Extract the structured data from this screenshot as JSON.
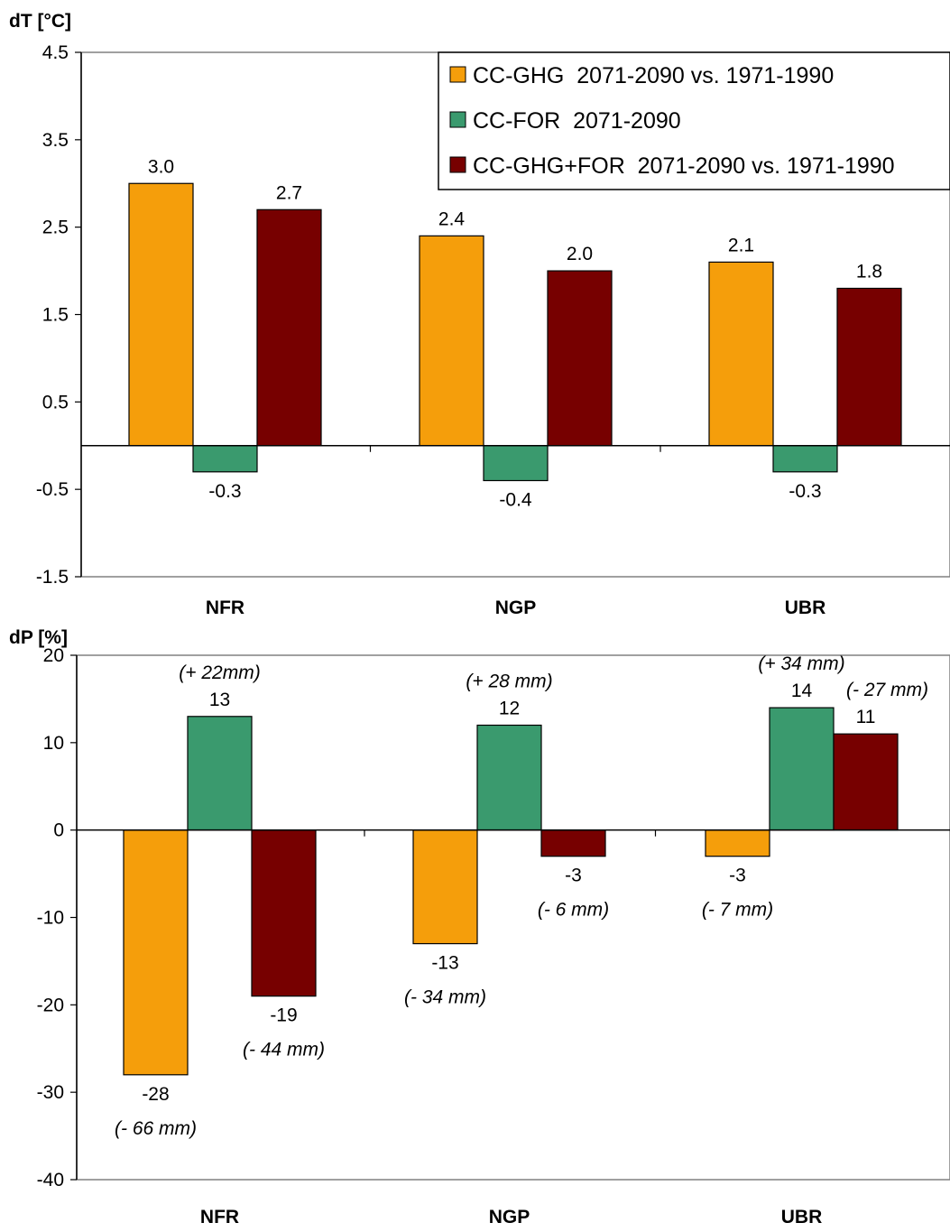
{
  "chart_data": [
    {
      "type": "bar",
      "ylabel": "dT [°C]",
      "categories": [
        "NFR",
        "NGP",
        "UBR"
      ],
      "ylim": [
        -1.5,
        4.5
      ],
      "yticks": [
        "4.5",
        "3.5",
        "2.5",
        "1.5",
        "0.5",
        "-0.5",
        "-1.5"
      ],
      "ytick_values": [
        4.5,
        3.5,
        2.5,
        1.5,
        0.5,
        -0.5,
        -1.5
      ],
      "series": [
        {
          "name": "CC-GHG  2071-2090 vs. 1971-1990",
          "color": "#f59e0b",
          "values": [
            3.0,
            2.4,
            2.1
          ],
          "labels": [
            "3.0",
            "2.4",
            "2.1"
          ]
        },
        {
          "name": "CC-FOR  2071-2090",
          "color": "#3a9a6e",
          "values": [
            -0.3,
            -0.4,
            -0.3
          ],
          "labels": [
            "-0.3",
            "-0.4",
            "-0.3"
          ]
        },
        {
          "name": "CC-GHG+FOR  2071-2090 vs. 1971-1990",
          "color": "#770000",
          "values": [
            2.7,
            2.0,
            1.8
          ],
          "labels": [
            "2.7",
            "2.0",
            "1.8"
          ]
        }
      ],
      "legend": {
        "position": "top-right"
      }
    },
    {
      "type": "bar",
      "ylabel": "dP [%]",
      "categories": [
        "NFR",
        "NGP",
        "UBR"
      ],
      "ylim": [
        -40,
        20
      ],
      "yticks": [
        "20",
        "10",
        "0",
        "-10",
        "-20",
        "-30",
        "-40"
      ],
      "ytick_values": [
        20,
        10,
        0,
        -10,
        -20,
        -30,
        -40
      ],
      "series": [
        {
          "name": "CC-GHG",
          "color": "#f59e0b",
          "values": [
            -28,
            -13,
            -3
          ],
          "labels": [
            "-28",
            "-13",
            "-3"
          ],
          "notes": [
            "(- 66 mm)",
            "(- 34 mm)",
            "(- 7 mm)"
          ]
        },
        {
          "name": "CC-FOR",
          "color": "#3a9a6e",
          "values": [
            13,
            12,
            14
          ],
          "labels": [
            "13",
            "12",
            "14"
          ],
          "notes": [
            "(+ 22mm)",
            "(+ 28 mm)",
            "(+ 34 mm)"
          ]
        },
        {
          "name": "CC-GHG+FOR",
          "color": "#770000",
          "values": [
            -19,
            -3,
            11
          ],
          "labels": [
            "-19",
            "-3",
            "11"
          ],
          "notes": [
            "(- 44 mm)",
            "(- 6 mm)",
            "(- 27 mm)"
          ]
        }
      ]
    }
  ]
}
